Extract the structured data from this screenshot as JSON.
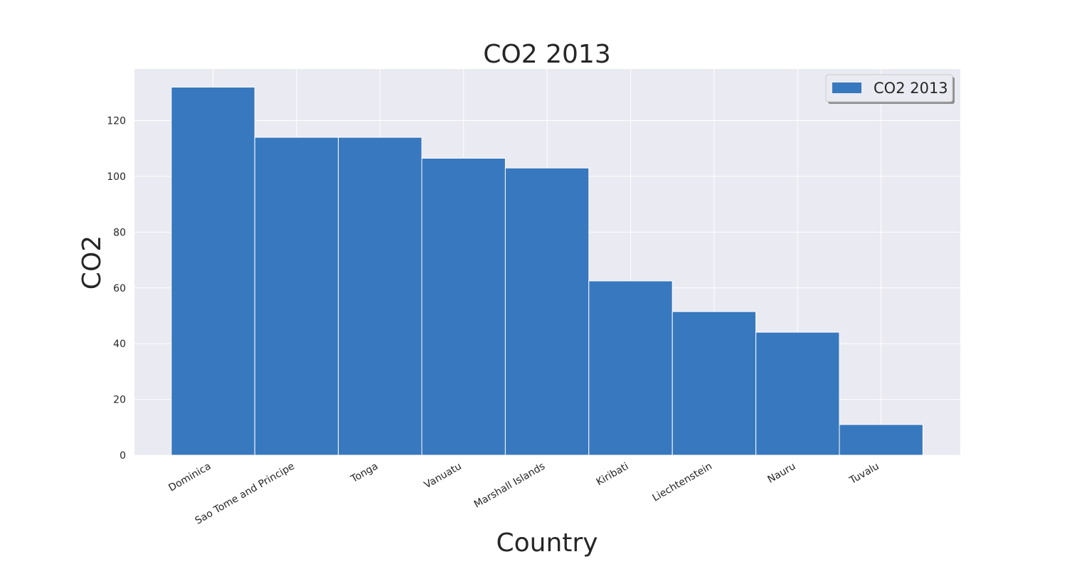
{
  "chart_data": {
    "type": "bar",
    "title": "CO2 2013",
    "xlabel": "Country",
    "ylabel": "CO2",
    "categories": [
      "Dominica",
      "Sao Tome and Principe",
      "Tonga",
      "Vanuatu",
      "Marshall Islands",
      "Kiribati",
      "Liechtenstein",
      "Nauru",
      "Tuvalu"
    ],
    "series": [
      {
        "name": "CO2 2013",
        "values": [
          132,
          114,
          114,
          106.5,
          103,
          62.5,
          51.5,
          44.1,
          11
        ]
      }
    ],
    "ylim": [
      0,
      138.5
    ],
    "yticks": [
      0,
      20,
      40,
      60,
      80,
      100,
      120
    ],
    "grid": true,
    "legend_position": "top-right",
    "colors": {
      "bar": "#3878be",
      "plot_background": "#eaeaf2",
      "grid": "#ffffff",
      "text": "#262626"
    }
  }
}
